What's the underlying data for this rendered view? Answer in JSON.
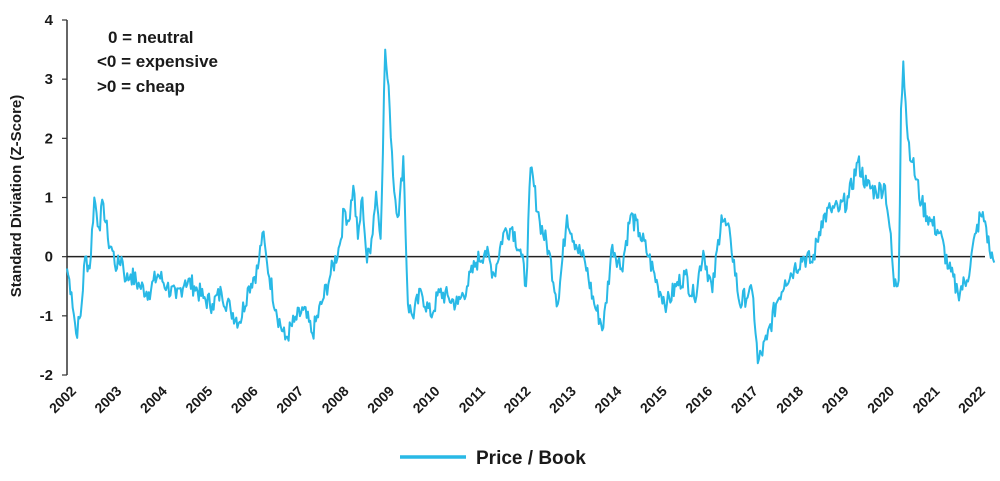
{
  "chart_data": {
    "type": "line",
    "title": "",
    "ylabel": "Standard Diviation (Z-Score)",
    "xlabel": "",
    "ylim": [
      -2,
      4
    ],
    "yticks": [
      "-2",
      "-1",
      "0",
      "1",
      "2",
      "3",
      "4"
    ],
    "xticks": [
      "2002",
      "2003",
      "2004",
      "2005",
      "2006",
      "2007",
      "2008",
      "2009",
      "2010",
      "2011",
      "2012",
      "2013",
      "2014",
      "2015",
      "2016",
      "2017",
      "2018",
      "2019",
      "2020",
      "2021",
      "2022"
    ],
    "notes": [
      "0 = neutral",
      "<0 = expensive",
      ">0 = cheap"
    ],
    "legend_position": "bottom-center",
    "grid": false,
    "zero_line": true,
    "series": [
      {
        "name": "Price / Book",
        "color": "#29b9e6",
        "x": [
          2002.0,
          2002.1,
          2002.2,
          2002.3,
          2002.4,
          2002.5,
          2002.6,
          2002.7,
          2002.8,
          2002.9,
          2003.0,
          2003.1,
          2003.2,
          2003.3,
          2003.4,
          2003.6,
          2003.8,
          2004.0,
          2004.2,
          2004.4,
          2004.6,
          2004.8,
          2005.0,
          2005.2,
          2005.4,
          2005.6,
          2005.8,
          2006.0,
          2006.2,
          2006.3,
          2006.4,
          2006.6,
          2006.8,
          2007.0,
          2007.2,
          2007.4,
          2007.6,
          2007.8,
          2008.0,
          2008.1,
          2008.2,
          2008.3,
          2008.4,
          2008.5,
          2008.6,
          2008.7,
          2008.8,
          2008.9,
          2009.0,
          2009.1,
          2009.2,
          2009.3,
          2009.4,
          2009.5,
          2009.6,
          2009.8,
          2010.0,
          2010.2,
          2010.4,
          2010.6,
          2010.8,
          2011.0,
          2011.2,
          2011.4,
          2011.6,
          2011.8,
          2012.0,
          2012.1,
          2012.2,
          2012.4,
          2012.6,
          2012.8,
          2013.0,
          2013.2,
          2013.4,
          2013.6,
          2013.8,
          2014.0,
          2014.2,
          2014.4,
          2014.6,
          2014.8,
          2015.0,
          2015.2,
          2015.4,
          2015.6,
          2015.8,
          2016.0,
          2016.2,
          2016.4,
          2016.6,
          2016.8,
          2017.0,
          2017.1,
          2017.2,
          2017.4,
          2017.6,
          2017.8,
          2018.0,
          2018.2,
          2018.4,
          2018.6,
          2018.8,
          2019.0,
          2019.2,
          2019.4,
          2019.6,
          2019.8,
          2020.0,
          2020.1,
          2020.2,
          2020.3,
          2020.35,
          2020.4,
          2020.5,
          2020.6,
          2020.8,
          2021.0,
          2021.2,
          2021.4,
          2021.6,
          2021.8,
          2022.0,
          2022.1,
          2022.2,
          2022.3,
          2022.4
        ],
        "values": [
          -0.2,
          -0.6,
          -1.3,
          -1.0,
          0.0,
          -0.2,
          1.0,
          0.5,
          0.9,
          0.3,
          0.1,
          -0.2,
          0.0,
          -0.4,
          -0.3,
          -0.5,
          -0.6,
          -0.3,
          -0.5,
          -0.7,
          -0.4,
          -0.5,
          -0.7,
          -0.8,
          -0.6,
          -0.9,
          -1.1,
          -0.5,
          -0.2,
          0.4,
          -0.1,
          -0.9,
          -1.4,
          -1.1,
          -0.9,
          -1.3,
          -0.8,
          -0.3,
          0.2,
          0.8,
          0.6,
          1.2,
          0.3,
          1.0,
          -0.1,
          0.3,
          1.1,
          0.3,
          3.5,
          2.5,
          1.1,
          0.7,
          1.7,
          -0.8,
          -1.0,
          -0.6,
          -1.0,
          -0.6,
          -0.7,
          -0.8,
          -0.5,
          -0.1,
          0.1,
          -0.3,
          0.4,
          0.5,
          0.0,
          -0.5,
          1.5,
          0.6,
          0.1,
          -0.8,
          0.7,
          0.2,
          -0.1,
          -0.8,
          -1.2,
          0.2,
          -0.2,
          0.7,
          0.4,
          0.0,
          -0.5,
          -0.8,
          -0.5,
          -0.3,
          -0.7,
          0.1,
          -0.6,
          0.7,
          0.3,
          -0.8,
          -0.6,
          -0.7,
          -1.8,
          -1.4,
          -0.8,
          -0.4,
          -0.2,
          0.0,
          -0.1,
          0.6,
          0.8,
          0.8,
          1.0,
          1.6,
          1.2,
          1.1,
          1.2,
          0.5,
          -0.5,
          -0.4,
          2.5,
          3.3,
          2.0,
          1.6,
          0.9,
          0.6,
          0.4,
          -0.2,
          -0.6,
          -0.4,
          0.4,
          0.7,
          0.6,
          0.1,
          -0.1
        ]
      }
    ]
  }
}
